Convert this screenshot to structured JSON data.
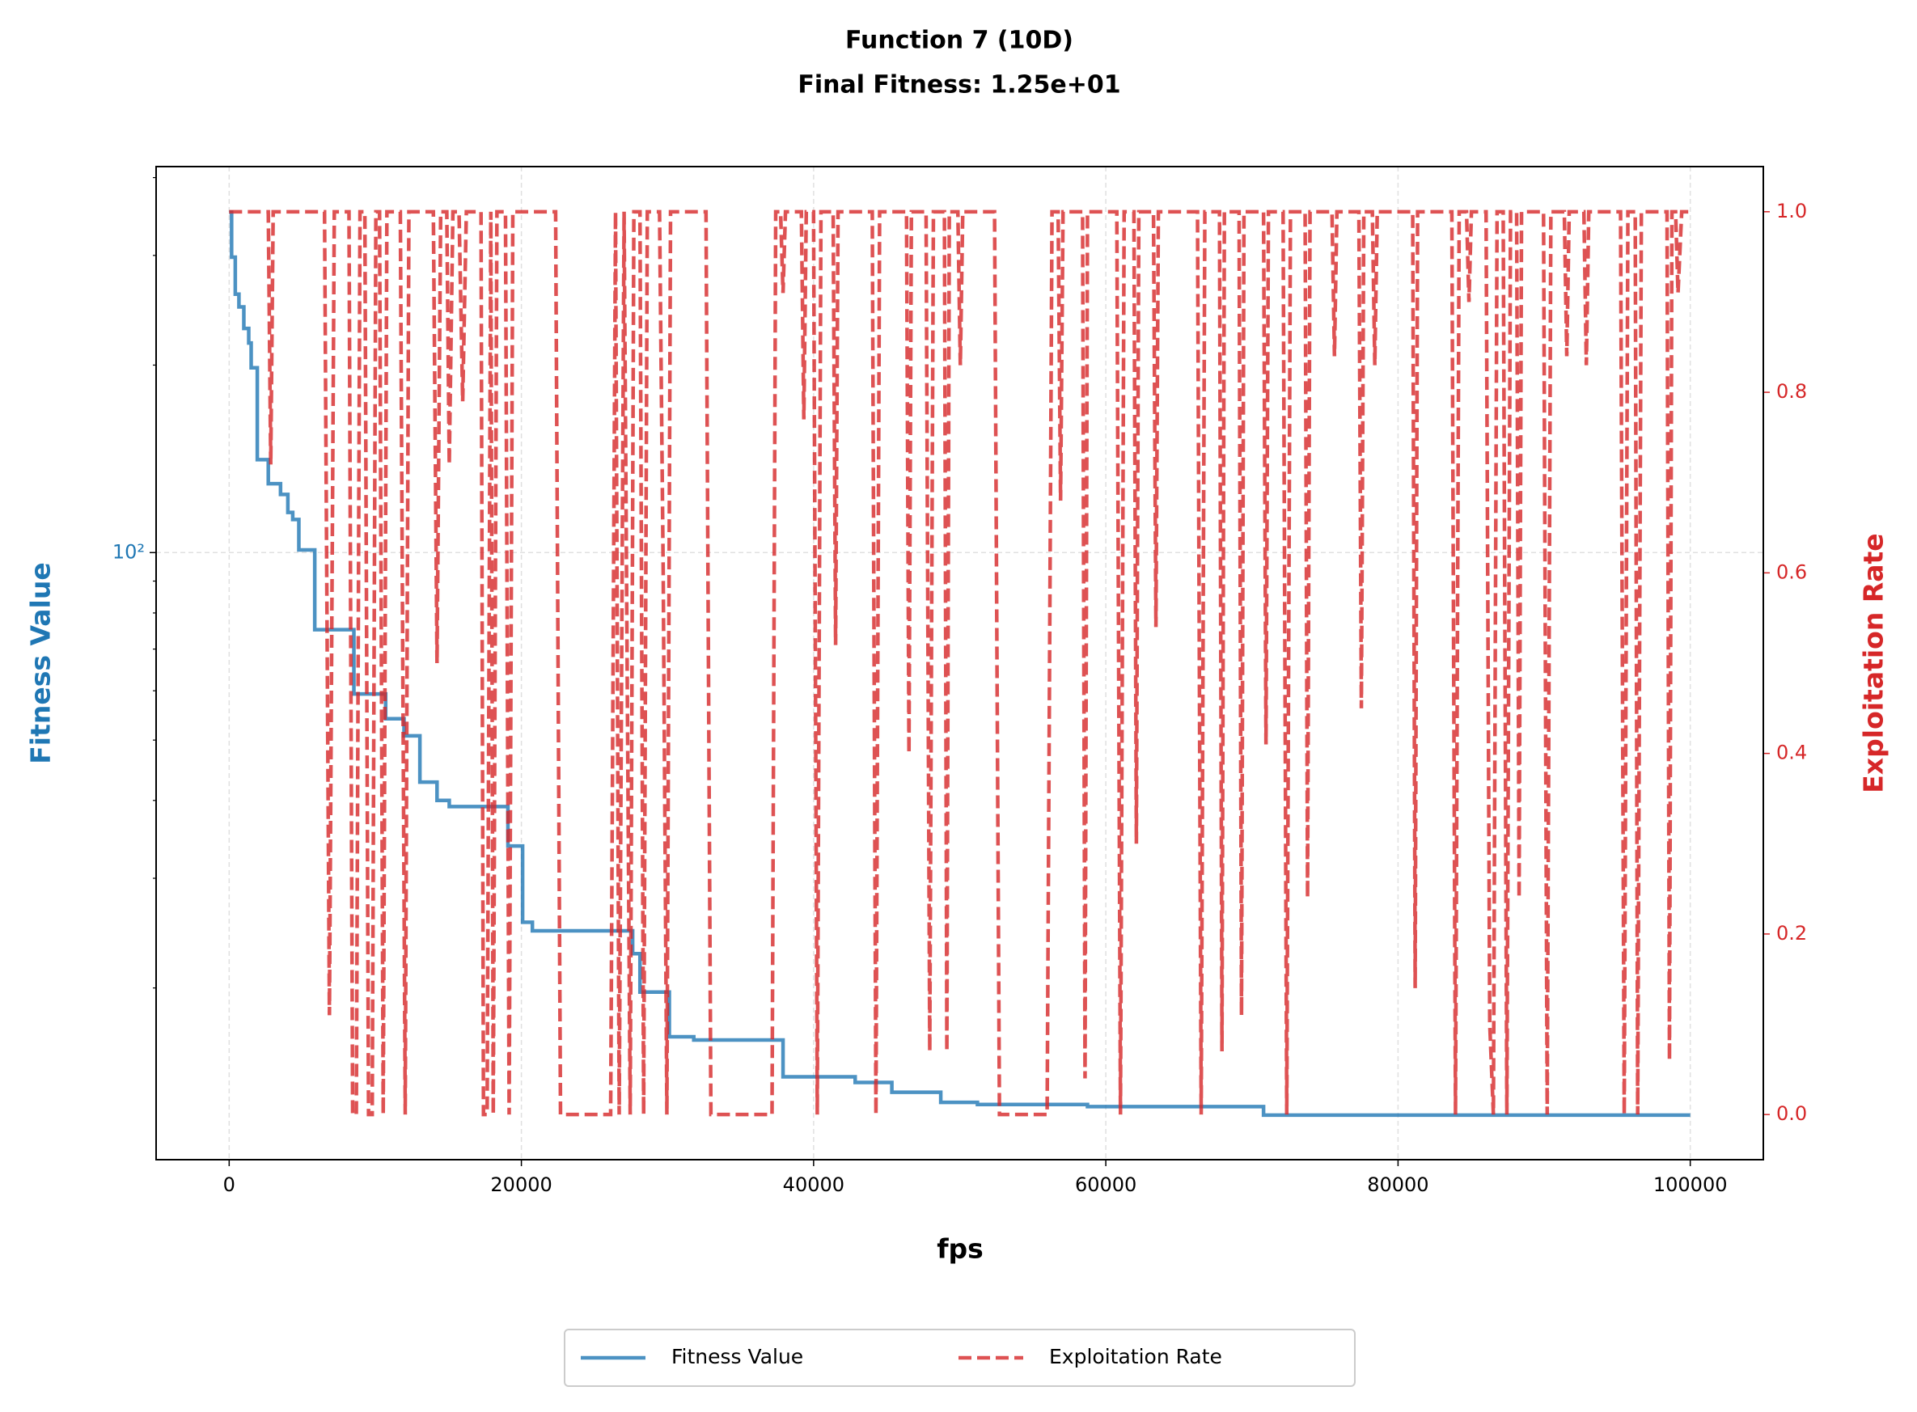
{
  "chart_data": {
    "type": "line",
    "title": "Function 7 (10D)",
    "subtitle": "Final Fitness: 1.25e+01",
    "xlabel": "fps",
    "ylabel": "Fitness Value",
    "y2label": "Exploitation Rate",
    "xlim": [
      -5000,
      105000
    ],
    "xticks": [
      0,
      20000,
      40000,
      60000,
      80000,
      100000
    ],
    "ylim": [
      10.6,
      416.6
    ],
    "yscale": "log",
    "yticks": [
      {
        "value": 100,
        "label": "10²"
      }
    ],
    "yminorticks": [
      20,
      30,
      40,
      50,
      60,
      70,
      80,
      90,
      200,
      300,
      400
    ],
    "y2lim": [
      -0.05,
      1.05
    ],
    "y2ticks": [
      {
        "value": 0,
        "label": "0.0"
      },
      0.2,
      0.4,
      0.6,
      0.8,
      {
        "value": 1,
        "label": "1.0"
      }
    ],
    "grid": true,
    "legend": "below",
    "series": [
      {
        "name": "Fitness Value",
        "color": "#1f77b4",
        "axis": "y",
        "style": "solid",
        "x": [
          0,
          167,
          167,
          418,
          418,
          669,
          669,
          1004,
          1004,
          1339,
          1339,
          1506,
          1506,
          1925,
          1925,
          2678,
          2678,
          3515,
          3515,
          4017,
          4017,
          4351,
          4351,
          4770,
          4770,
          5858,
          5858,
          8536,
          8536,
          10711,
          10711,
          11967,
          11967,
          13054,
          13054,
          14226,
          14226,
          15063,
          15063,
          19080,
          19080,
          20084,
          20084,
          20753,
          20753,
          27615,
          27615,
          28117,
          28117,
          30126,
          30126,
          31799,
          31799,
          37908,
          37908,
          42845,
          42845,
          45356,
          45356,
          48703,
          48703,
          51213,
          51213,
          58745,
          58745,
          70795,
          70795,
          100000
        ],
        "values": [
          352,
          352,
          298,
          298,
          260,
          260,
          248,
          248,
          229,
          229,
          217,
          217,
          198,
          198,
          141,
          141,
          129,
          129,
          124,
          124,
          116,
          116,
          113,
          113,
          101,
          101,
          75.2,
          75.2,
          59.3,
          59.3,
          54.1,
          54.1,
          50.8,
          50.8,
          42.8,
          42.8,
          40,
          40,
          39.1,
          39.1,
          33.8,
          33.8,
          25.5,
          25.5,
          24.7,
          24.7,
          22.7,
          22.7,
          19.7,
          19.7,
          16.7,
          16.7,
          16.5,
          16.5,
          14.4,
          14.4,
          14.1,
          14.1,
          13.6,
          13.6,
          13.1,
          13.1,
          13.0,
          13.0,
          12.9,
          12.9,
          12.5,
          12.5
        ]
      },
      {
        "name": "Exploitation Rate",
        "color": "#d62728",
        "axis": "y2",
        "style": "dashed",
        "x": [
          0,
          2678,
          2845,
          3012,
          6527,
          6862,
          7196,
          8201,
          8452,
          8703,
          8954,
          9288,
          9540,
          9791,
          10042,
          10293,
          10544,
          10795,
          11715,
          12050,
          12301,
          13975,
          14226,
          14477,
          14895,
          15063,
          15314,
          15732,
          15983,
          16234,
          17238,
          17406,
          17657,
          17908,
          18075,
          18326,
          18912,
          19163,
          19414,
          22343,
          22678,
          26109,
          26444,
          26694,
          27029,
          27447,
          27699,
          28117,
          28368,
          28619,
          29456,
          29707,
          29958,
          30209,
          32636,
          32971,
          37155,
          37406,
          37740,
          37908,
          38075,
          39163,
          39331,
          39498,
          39996,
          40251,
          40502,
          41338,
          41506,
          41673,
          44016,
          44267,
          44518,
          46359,
          46527,
          46694,
          47698,
          47949,
          48200,
          48953,
          49121,
          49288,
          49874,
          50042,
          50209,
          52385,
          52720,
          55983,
          56317,
          56736,
          56903,
          57071,
          58410,
          58577,
          58745,
          60753,
          61002,
          61254,
          61923,
          62091,
          62258,
          63262,
          63429,
          63597,
          66275,
          66526,
          66776,
          67780,
          67948,
          68115,
          69120,
          69287,
          69454,
          70795,
          70962,
          71130,
          72133,
          72383,
          72636,
          73640,
          73807,
          73975,
          75479,
          75649,
          75816,
          77320,
          77490,
          77657,
          78243,
          78410,
          78577,
          81004,
          81172,
          81339,
          83682,
          83933,
          84184,
          84686,
          84854,
          85021,
          86025,
          86276,
          86527,
          86778,
          87197,
          87448,
          87699,
          88117,
          88285,
          88452,
          89958,
          90209,
          90460,
          91380,
          91548,
          91715,
          92720,
          92887,
          93054,
          95230,
          95481,
          95732,
          96234,
          96402,
          96653,
          98410,
          98577,
          98745,
          98996,
          99163,
          99414,
          100000
        ],
        "values": [
          1,
          1,
          0.72,
          1,
          1,
          0.11,
          1,
          1,
          0,
          0,
          1,
          1,
          0,
          0,
          1,
          1,
          0,
          1,
          1,
          0,
          1,
          1,
          0.5,
          1,
          1,
          0.72,
          1,
          1,
          0.79,
          1,
          1,
          0,
          0,
          1,
          0,
          1,
          1,
          0,
          1,
          1,
          0,
          0,
          1,
          0,
          1,
          0,
          1,
          1,
          0,
          1,
          1,
          0.6,
          0,
          1,
          1,
          0,
          0,
          1,
          1,
          0.91,
          1,
          1,
          0.77,
          1,
          1,
          0,
          1,
          1,
          0.52,
          1,
          1,
          0,
          1,
          1,
          0.4,
          1,
          1,
          0.07,
          1,
          1,
          0.07,
          1,
          1,
          0.83,
          1,
          1,
          0,
          0,
          1,
          1,
          0.68,
          1,
          1,
          0.04,
          1,
          1,
          0,
          1,
          1,
          0.3,
          1,
          1,
          0.54,
          1,
          1,
          0,
          1,
          1,
          0.07,
          1,
          1,
          0.11,
          1,
          1,
          0.41,
          1,
          1,
          0,
          1,
          1,
          0.24,
          1,
          1,
          0.84,
          1,
          1,
          0.45,
          1,
          1,
          0.83,
          1,
          1,
          0.14,
          1,
          1,
          0,
          1,
          1,
          0.9,
          1,
          1,
          0.1,
          0,
          1,
          1,
          0,
          1,
          1,
          0.24,
          1,
          1,
          0,
          1,
          1,
          0.84,
          1,
          1,
          0.83,
          1,
          1,
          0,
          1,
          1,
          0,
          1,
          1,
          0.06,
          1,
          1,
          0.91,
          1,
          1
        ]
      }
    ]
  }
}
